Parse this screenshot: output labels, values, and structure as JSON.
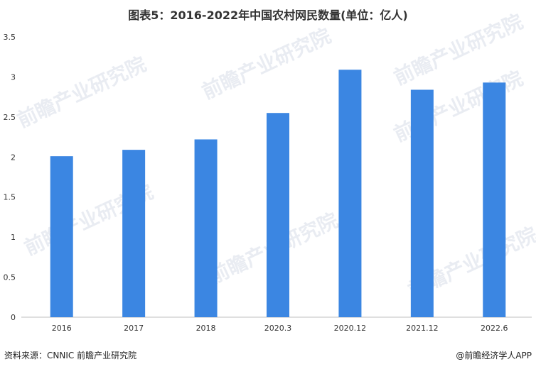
{
  "chart_data": {
    "type": "bar",
    "title": "图表5：2016-2022年中国农村网民数量(单位：亿人)",
    "categories": [
      "2016",
      "2017",
      "2018",
      "2020.3",
      "2020.12",
      "2021.12",
      "2022.6"
    ],
    "values": [
      2.01,
      2.09,
      2.22,
      2.55,
      3.09,
      2.84,
      2.93
    ],
    "ylim": [
      0,
      3.5
    ],
    "yticks": [
      "0",
      "0.5",
      "1",
      "1.5",
      "2",
      "2.5",
      "3",
      "3.5"
    ],
    "grid": false,
    "bar_color": "#3b86e2",
    "xlabel": "",
    "ylabel": ""
  },
  "footer": {
    "source": "资料来源：CNNIC 前瞻产业研究院",
    "credit": "@前瞻经济学人APP"
  },
  "watermark": {
    "text": "前瞻产业研究院"
  }
}
